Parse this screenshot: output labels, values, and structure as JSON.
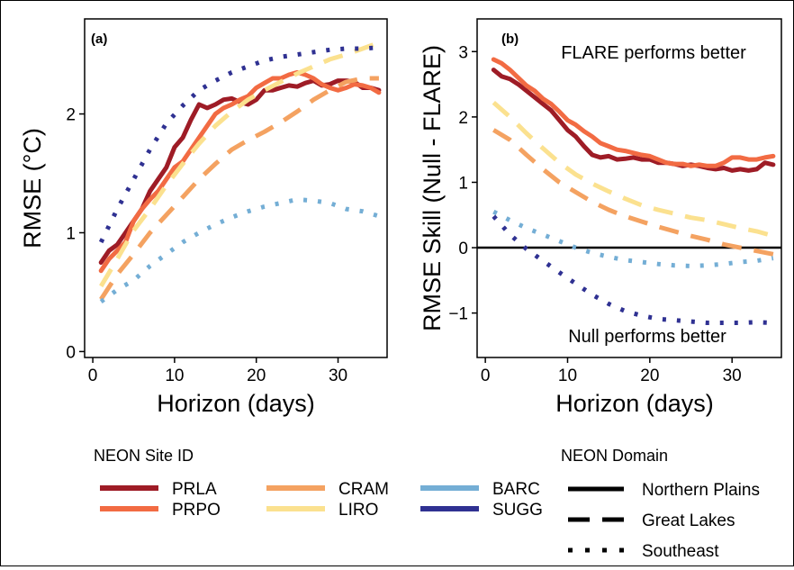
{
  "chart_data": [
    {
      "type": "line",
      "panel_label": "(a)",
      "xlabel": "Horizon (days)",
      "ylabel": "RMSE (°C)",
      "xlim": [
        -1,
        36
      ],
      "ylim": [
        -0.05,
        2.8
      ],
      "xticks": [
        0,
        10,
        20,
        30
      ],
      "yticks": [
        0,
        1,
        2
      ],
      "grid": false,
      "series": [
        {
          "name": "PRLA",
          "site": "PRLA",
          "domain": "Northern Plains",
          "color": "#9e1c26",
          "dash": "solid",
          "x": [
            1,
            2,
            3,
            4,
            5,
            6,
            7,
            8,
            9,
            10,
            11,
            12,
            13,
            14,
            15,
            16,
            17,
            18,
            19,
            20,
            21,
            22,
            23,
            24,
            25,
            26,
            27,
            28,
            29,
            30,
            31,
            32,
            33,
            34,
            35
          ],
          "y": [
            0.75,
            0.85,
            0.9,
            1.0,
            1.1,
            1.2,
            1.35,
            1.45,
            1.55,
            1.72,
            1.8,
            1.95,
            2.08,
            2.05,
            2.08,
            2.12,
            2.13,
            2.1,
            2.08,
            2.12,
            2.2,
            2.2,
            2.22,
            2.24,
            2.23,
            2.26,
            2.28,
            2.24,
            2.25,
            2.28,
            2.28,
            2.27,
            2.22,
            2.22,
            2.2
          ]
        },
        {
          "name": "PRPO",
          "site": "PRPO",
          "domain": "Northern Plains",
          "color": "#f26b43",
          "dash": "solid",
          "x": [
            1,
            2,
            3,
            4,
            5,
            6,
            7,
            8,
            9,
            10,
            11,
            12,
            13,
            14,
            15,
            16,
            17,
            18,
            19,
            20,
            21,
            22,
            23,
            24,
            25,
            26,
            27,
            28,
            29,
            30,
            31,
            32,
            33,
            34,
            35
          ],
          "y": [
            0.68,
            0.78,
            0.85,
            0.92,
            1.1,
            1.2,
            1.28,
            1.35,
            1.45,
            1.55,
            1.6,
            1.7,
            1.8,
            1.9,
            2.0,
            2.05,
            2.08,
            2.12,
            2.15,
            2.22,
            2.26,
            2.3,
            2.3,
            2.33,
            2.35,
            2.33,
            2.3,
            2.25,
            2.22,
            2.2,
            2.22,
            2.25,
            2.24,
            2.22,
            2.18
          ]
        },
        {
          "name": "CRAM",
          "site": "CRAM",
          "domain": "Great Lakes",
          "color": "#f4a261",
          "dash": "dash",
          "x": [
            1,
            3,
            5,
            7,
            9,
            11,
            13,
            15,
            17,
            19,
            21,
            23,
            25,
            27,
            29,
            31,
            33,
            35
          ],
          "y": [
            0.44,
            0.65,
            0.82,
            1.0,
            1.15,
            1.3,
            1.45,
            1.58,
            1.7,
            1.78,
            1.85,
            1.93,
            2.02,
            2.12,
            2.2,
            2.27,
            2.3,
            2.3
          ]
        },
        {
          "name": "LIRO",
          "site": "LIRO",
          "domain": "Great Lakes",
          "color": "#fbe18f",
          "dash": "dash",
          "x": [
            1,
            3,
            5,
            7,
            9,
            11,
            13,
            15,
            17,
            19,
            21,
            23,
            25,
            27,
            29,
            31,
            33,
            35
          ],
          "y": [
            0.55,
            0.78,
            1.02,
            1.2,
            1.4,
            1.58,
            1.75,
            1.9,
            2.02,
            2.12,
            2.2,
            2.27,
            2.34,
            2.4,
            2.46,
            2.5,
            2.55,
            2.6
          ]
        },
        {
          "name": "BARC",
          "site": "BARC",
          "domain": "Southeast",
          "color": "#74aed5",
          "dash": "dot",
          "x": [
            1,
            3,
            5,
            7,
            9,
            11,
            13,
            15,
            17,
            19,
            21,
            23,
            25,
            27,
            29,
            31,
            33,
            35
          ],
          "y": [
            0.42,
            0.52,
            0.6,
            0.72,
            0.82,
            0.92,
            1.0,
            1.07,
            1.13,
            1.18,
            1.22,
            1.25,
            1.28,
            1.27,
            1.25,
            1.2,
            1.18,
            1.14
          ]
        },
        {
          "name": "SUGG",
          "site": "SUGG",
          "domain": "Southeast",
          "color": "#2f3192",
          "dash": "dot",
          "x": [
            1,
            3,
            5,
            7,
            9,
            11,
            13,
            15,
            17,
            19,
            21,
            23,
            25,
            27,
            29,
            31,
            33,
            35
          ],
          "y": [
            0.92,
            1.2,
            1.45,
            1.7,
            1.92,
            2.07,
            2.2,
            2.28,
            2.35,
            2.4,
            2.45,
            2.48,
            2.5,
            2.52,
            2.54,
            2.55,
            2.55,
            2.56
          ]
        }
      ]
    },
    {
      "type": "line",
      "panel_label": "(b)",
      "xlabel": "Horizon (days)",
      "ylabel": "RMSE Skill (Null - FLARE)",
      "xlim": [
        -1,
        36
      ],
      "ylim": [
        -1.68,
        3.5
      ],
      "xticks": [
        0,
        10,
        20,
        30
      ],
      "yticks": [
        -1,
        0,
        1,
        2,
        3
      ],
      "ytick_labels": [
        "−1",
        "0",
        "1",
        "2",
        "3"
      ],
      "reference_line": 0,
      "grid": false,
      "annotations": [
        "FLARE performs better",
        "Null performs better"
      ],
      "series": [
        {
          "name": "PRLA",
          "site": "PRLA",
          "domain": "Northern Plains",
          "color": "#9e1c26",
          "dash": "solid",
          "x": [
            1,
            2,
            3,
            4,
            5,
            6,
            7,
            8,
            9,
            10,
            11,
            12,
            13,
            14,
            15,
            16,
            17,
            18,
            19,
            20,
            21,
            22,
            23,
            24,
            25,
            26,
            27,
            28,
            29,
            30,
            31,
            32,
            33,
            34,
            35
          ],
          "y": [
            2.72,
            2.62,
            2.58,
            2.5,
            2.4,
            2.3,
            2.2,
            2.1,
            1.95,
            1.8,
            1.7,
            1.55,
            1.42,
            1.38,
            1.4,
            1.35,
            1.36,
            1.38,
            1.35,
            1.35,
            1.3,
            1.3,
            1.28,
            1.25,
            1.27,
            1.25,
            1.22,
            1.2,
            1.22,
            1.18,
            1.2,
            1.18,
            1.2,
            1.3,
            1.27
          ]
        },
        {
          "name": "PRPO",
          "site": "PRPO",
          "domain": "Northern Plains",
          "color": "#f26b43",
          "dash": "solid",
          "x": [
            1,
            2,
            3,
            4,
            5,
            6,
            7,
            8,
            9,
            10,
            11,
            12,
            13,
            14,
            15,
            16,
            17,
            18,
            19,
            20,
            21,
            22,
            23,
            24,
            25,
            26,
            27,
            28,
            29,
            30,
            31,
            32,
            33,
            34,
            35
          ],
          "y": [
            2.88,
            2.82,
            2.72,
            2.6,
            2.48,
            2.4,
            2.28,
            2.2,
            2.08,
            1.95,
            1.88,
            1.78,
            1.7,
            1.6,
            1.55,
            1.5,
            1.48,
            1.45,
            1.42,
            1.4,
            1.35,
            1.3,
            1.28,
            1.28,
            1.25,
            1.27,
            1.25,
            1.25,
            1.3,
            1.38,
            1.38,
            1.35,
            1.35,
            1.38,
            1.4
          ]
        },
        {
          "name": "CRAM",
          "site": "CRAM",
          "domain": "Great Lakes",
          "color": "#f4a261",
          "dash": "dash",
          "x": [
            1,
            3,
            5,
            7,
            9,
            11,
            13,
            15,
            17,
            19,
            21,
            23,
            25,
            27,
            29,
            31,
            33,
            35
          ],
          "y": [
            1.8,
            1.65,
            1.42,
            1.2,
            1.0,
            0.85,
            0.7,
            0.58,
            0.48,
            0.4,
            0.32,
            0.25,
            0.18,
            0.12,
            0.05,
            0.0,
            -0.05,
            -0.1
          ]
        },
        {
          "name": "LIRO",
          "site": "LIRO",
          "domain": "Great Lakes",
          "color": "#fbe18f",
          "dash": "dash",
          "x": [
            1,
            3,
            5,
            7,
            9,
            11,
            13,
            15,
            17,
            19,
            21,
            23,
            25,
            27,
            29,
            31,
            33,
            35
          ],
          "y": [
            2.22,
            2.0,
            1.75,
            1.52,
            1.3,
            1.12,
            0.98,
            0.86,
            0.75,
            0.65,
            0.58,
            0.52,
            0.46,
            0.42,
            0.36,
            0.3,
            0.25,
            0.18
          ]
        },
        {
          "name": "BARC",
          "site": "BARC",
          "domain": "Southeast",
          "color": "#74aed5",
          "dash": "dot",
          "x": [
            1,
            3,
            5,
            7,
            9,
            11,
            13,
            15,
            17,
            19,
            21,
            23,
            25,
            27,
            29,
            31,
            33,
            35
          ],
          "y": [
            0.55,
            0.42,
            0.3,
            0.2,
            0.1,
            0.0,
            -0.08,
            -0.14,
            -0.19,
            -0.22,
            -0.25,
            -0.27,
            -0.28,
            -0.27,
            -0.25,
            -0.22,
            -0.2,
            -0.16
          ]
        },
        {
          "name": "SUGG",
          "site": "SUGG",
          "domain": "Southeast",
          "color": "#2f3192",
          "dash": "dot",
          "x": [
            1,
            3,
            5,
            7,
            9,
            11,
            13,
            15,
            17,
            19,
            21,
            23,
            25,
            27,
            29,
            31,
            33,
            35
          ],
          "y": [
            0.48,
            0.2,
            -0.02,
            -0.2,
            -0.38,
            -0.55,
            -0.72,
            -0.86,
            -0.97,
            -1.04,
            -1.09,
            -1.11,
            -1.13,
            -1.15,
            -1.15,
            -1.15,
            -1.14,
            -1.15
          ]
        }
      ]
    }
  ],
  "legend": {
    "site_title": "NEON Site ID",
    "sites": [
      {
        "name": "PRLA",
        "color": "#9e1c26"
      },
      {
        "name": "PRPO",
        "color": "#f26b43"
      },
      {
        "name": "CRAM",
        "color": "#f4a261"
      },
      {
        "name": "LIRO",
        "color": "#fbe18f"
      },
      {
        "name": "BARC",
        "color": "#74aed5"
      },
      {
        "name": "SUGG",
        "color": "#2f3192"
      }
    ],
    "domain_title": "NEON Domain",
    "domains": [
      {
        "name": "Northern Plains",
        "dash": "solid"
      },
      {
        "name": "Great Lakes",
        "dash": "dash"
      },
      {
        "name": "Southeast",
        "dash": "dot"
      }
    ]
  }
}
